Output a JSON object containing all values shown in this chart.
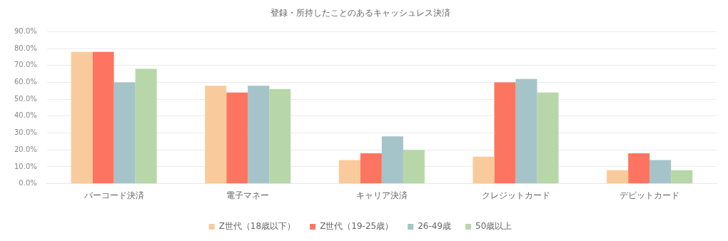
{
  "chart_data": {
    "type": "bar",
    "title": "登録・所持したことのあるキャッシュレス決済",
    "categories": [
      "バーコード決済",
      "電子マネー",
      "キャリア決済",
      "クレジットカード",
      "デビットカード"
    ],
    "series": [
      {
        "name": "Z世代（18歳以下）",
        "color": "#f9cb9c",
        "values": [
          78,
          58,
          14,
          16,
          8
        ]
      },
      {
        "name": "Z世代（19-25歳）",
        "color": "#fd7560",
        "values": [
          78,
          54,
          18,
          60,
          18
        ]
      },
      {
        "name": "26-49歳",
        "color": "#a4c4c9",
        "values": [
          60,
          58,
          28,
          62,
          14
        ]
      },
      {
        "name": "50歳以上",
        "color": "#b7d7a8",
        "values": [
          68,
          56,
          20,
          54,
          8
        ]
      }
    ],
    "ylim": [
      0,
      90
    ],
    "yticks": [
      {
        "value": 0,
        "label": "0.0%"
      },
      {
        "value": 10,
        "label": "10.0%"
      },
      {
        "value": 20,
        "label": "20.0%"
      },
      {
        "value": 30,
        "label": "30.0%"
      },
      {
        "value": 40,
        "label": "40.0%"
      },
      {
        "value": 50,
        "label": "50.0%"
      },
      {
        "value": 60,
        "label": "60.0%"
      },
      {
        "value": 70,
        "label": "70.0%"
      },
      {
        "value": 80,
        "label": "80.0%"
      },
      {
        "value": 90,
        "label": "90.0%"
      }
    ],
    "grid": "y",
    "legend": "bottom"
  }
}
